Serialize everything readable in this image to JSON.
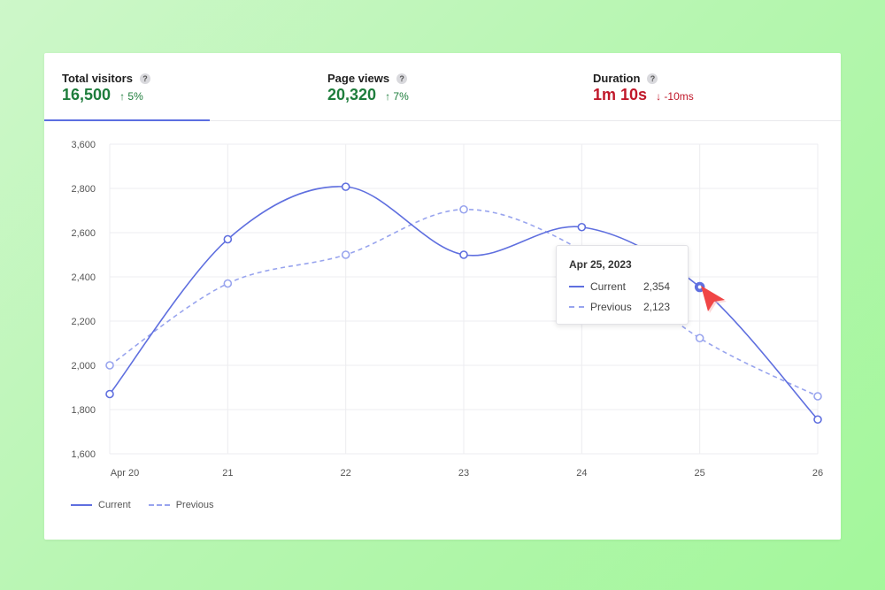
{
  "tabs": [
    {
      "title": "Total visitors",
      "value": "16,500",
      "delta": "↑ 5%",
      "trend": "up"
    },
    {
      "title": "Page views",
      "value": "20,320",
      "delta": "↑ 7%",
      "trend": "up"
    },
    {
      "title": "Duration",
      "value": "1m 10s",
      "delta": "↓ -10ms",
      "trend": "down"
    }
  ],
  "help_glyph": "?",
  "chart_data": {
    "type": "line",
    "categories": [
      "Apr 20",
      "21",
      "22",
      "23",
      "24",
      "25",
      "26"
    ],
    "series": [
      {
        "name": "Current",
        "style": "solid",
        "color": "#5f6fdf",
        "values": [
          1870,
          2570,
          2830,
          2500,
          2625,
          2354,
          1755
        ]
      },
      {
        "name": "Previous",
        "style": "dashed",
        "color": "#98a4ee",
        "values": [
          2000,
          2370,
          2500,
          2705,
          2520,
          2123,
          1860
        ]
      }
    ],
    "ylim": [
      1600,
      3600
    ],
    "yticks": [
      1600,
      1800,
      2000,
      2200,
      2400,
      2600,
      2800,
      3600
    ],
    "ytick_labels": [
      "1,600",
      "1,800",
      "2,000",
      "2,200",
      "2,400",
      "2,600",
      "2,800",
      "3,600"
    ],
    "grid": true,
    "legend_position": "bottom-left",
    "highlight_index": 5
  },
  "tooltip": {
    "date": "Apr 25, 2023",
    "rows": [
      {
        "label": "Current",
        "value": "2,354"
      },
      {
        "label": "Previous",
        "value": "2,123"
      }
    ]
  },
  "legend": [
    {
      "label": "Current"
    },
    {
      "label": "Previous"
    }
  ],
  "colors": {
    "up": "#1e7d3c",
    "down": "#c0182a",
    "accent": "#5b6ee1",
    "cursor": "#f04545"
  }
}
